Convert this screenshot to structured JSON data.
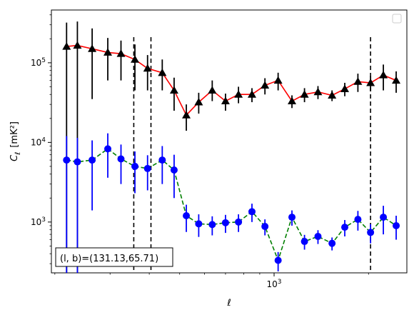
{
  "chart_data": {
    "type": "line",
    "xlabel": "ℓ",
    "ylabel": "C_ℓ [mK²]",
    "xscale": "log",
    "yscale": "log",
    "xlim": [
      195,
      2650
    ],
    "ylim": [
      230,
      460000
    ],
    "grid": false,
    "legend": "top-right",
    "x_tick_labels": [
      {
        "value": 1000,
        "base": "10",
        "exp": "3"
      }
    ],
    "y_tick_labels": [
      {
        "value": 1000,
        "base": "10",
        "exp": "3"
      },
      {
        "value": 10000,
        "base": "10",
        "exp": "4"
      },
      {
        "value": 100000,
        "base": "10",
        "exp": "5"
      }
    ],
    "x": [
      218,
      236,
      263,
      295,
      325,
      360,
      395,
      440,
      480,
      525,
      575,
      635,
      700,
      770,
      850,
      935,
      1030,
      1140,
      1250,
      1380,
      1530,
      1680,
      1850,
      2030,
      2230,
      2450
    ],
    "series": [
      {
        "color": "#ff0000",
        "marker": "triangle",
        "marker_color": "#000000",
        "errorbar_color": "#000000",
        "dashed": false,
        "values": [
          160000,
          165000,
          150000,
          135000,
          130000,
          110000,
          85000,
          75000,
          45000,
          22000,
          32000,
          45000,
          33000,
          40000,
          40000,
          52000,
          60000,
          33000,
          40000,
          43000,
          39000,
          47000,
          58000,
          56000,
          70000,
          60000
        ],
        "yerr_low": [
          160000,
          165000,
          115000,
          75000,
          70000,
          65000,
          40000,
          30000,
          20000,
          8000,
          9000,
          12000,
          8000,
          9000,
          8000,
          12000,
          15000,
          6000,
          8000,
          8000,
          6000,
          9000,
          15000,
          12000,
          25000,
          18000
        ],
        "yerr_high": [
          160000,
          165000,
          120000,
          70000,
          60000,
          60000,
          40000,
          35000,
          20000,
          8000,
          10000,
          15000,
          8000,
          10000,
          8000,
          12000,
          15000,
          6000,
          8000,
          8000,
          6000,
          9000,
          15000,
          12000,
          25000,
          18000
        ]
      },
      {
        "color": "#008000",
        "marker": "circle",
        "marker_color": "#0000ff",
        "errorbar_color": "#0000ff",
        "dashed": true,
        "values": [
          6000,
          5700,
          6000,
          8300,
          6200,
          5000,
          4700,
          6000,
          4500,
          1200,
          950,
          930,
          980,
          1000,
          1350,
          880,
          330,
          1150,
          570,
          660,
          540,
          860,
          1080,
          740,
          1150,
          900
        ],
        "yerr_low": [
          6000,
          5700,
          4600,
          4700,
          3200,
          2700,
          2200,
          3000,
          2500,
          450,
          300,
          250,
          250,
          250,
          350,
          200,
          90,
          250,
          120,
          130,
          100,
          200,
          300,
          200,
          450,
          300
        ],
        "yerr_high": [
          6000,
          5700,
          4600,
          4700,
          3200,
          2700,
          2200,
          3000,
          2500,
          450,
          300,
          250,
          250,
          250,
          350,
          200,
          90,
          250,
          120,
          130,
          100,
          200,
          300,
          200,
          450,
          300
        ]
      }
    ],
    "vlines": [
      357,
      405,
      2030
    ],
    "annotation": "(l, b)=(131.13,65.71)"
  }
}
